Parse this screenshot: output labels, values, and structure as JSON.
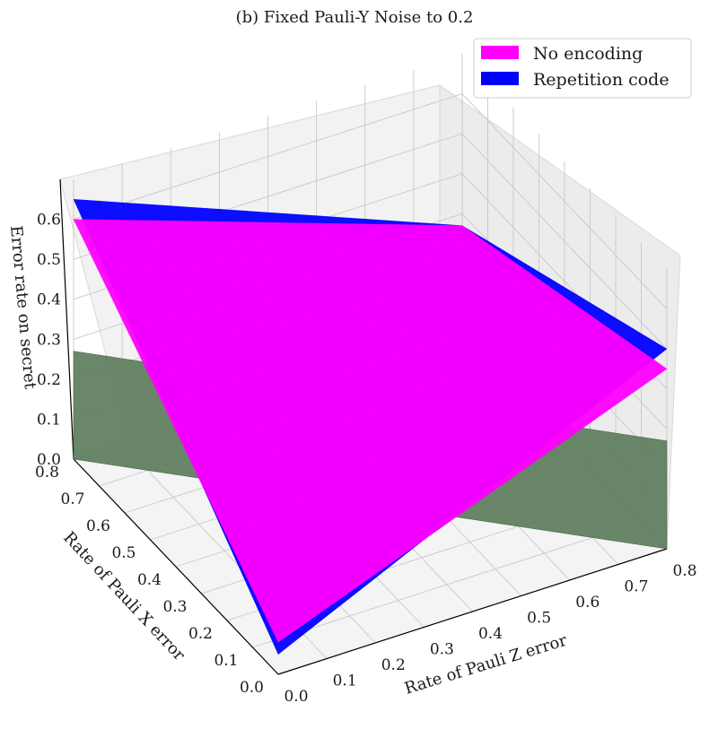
{
  "chart_data": {
    "type": "surface3d",
    "title": "(b) Fixed Pauli-Y Noise to 0.2",
    "xlabel": "Rate of Pauli Z error",
    "ylabel": "Rate of Pauli X error",
    "zlabel": "Error rate on secret",
    "x_ticks": [
      "0.0",
      "0.1",
      "0.2",
      "0.3",
      "0.4",
      "0.5",
      "0.6",
      "0.7",
      "0.8"
    ],
    "y_ticks": [
      "0.0",
      "0.1",
      "0.2",
      "0.3",
      "0.4",
      "0.5",
      "0.6",
      "0.7",
      "0.8"
    ],
    "z_ticks": [
      "0.0",
      "0.1",
      "0.2",
      "0.3",
      "0.4",
      "0.5",
      "0.6"
    ],
    "xlim": [
      0,
      0.8
    ],
    "ylim": [
      0,
      0.8
    ],
    "zlim": [
      0,
      0.68
    ],
    "fixed_pauli_y": 0.2,
    "legend_position": "top-right",
    "series": [
      {
        "name": "No encoding",
        "color": "#ff00ff",
        "corner_values": {
          "x0_y0": 0.08,
          "x0_y08": 0.6,
          "x08_y0": 0.45,
          "x08_y08": 0.27
        }
      },
      {
        "name": "Repetition code",
        "color": "#0000ff",
        "corner_values": {
          "x0_y0": 0.05,
          "x0_y08": 0.65,
          "x08_y0": 0.5,
          "x08_y08": 0.27
        }
      }
    ],
    "plane": {
      "color": "#5a7a5a",
      "description_value": 0.27
    }
  }
}
